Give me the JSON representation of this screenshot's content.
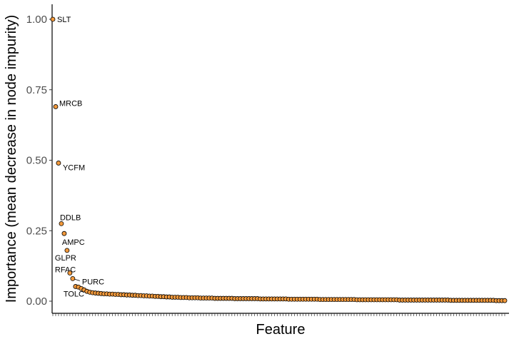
{
  "chart_data": {
    "type": "scatter",
    "title": "",
    "xlabel": "Feature",
    "ylabel": "Importance (mean decrease in node impurity)",
    "ylim": [
      -0.05,
      1.05
    ],
    "yticks": [
      0,
      0.25,
      0.5,
      0.75,
      1.0
    ],
    "ytick_labels": [
      "0.00",
      "0.25",
      "0.50",
      "0.75",
      "1.00"
    ],
    "grid": false,
    "point_color": "#F39A3C",
    "point_stroke": "#000000",
    "series": [
      {
        "values": [
          1.0,
          0.69,
          0.49,
          0.275,
          0.24,
          0.18,
          0.1,
          0.08,
          0.052,
          0.05,
          0.045,
          0.04,
          0.035,
          0.032,
          0.03,
          0.029,
          0.028,
          0.027,
          0.026,
          0.026,
          0.025,
          0.025,
          0.024,
          0.024,
          0.023,
          0.023,
          0.022,
          0.022,
          0.021,
          0.021,
          0.02,
          0.02,
          0.019,
          0.019,
          0.018,
          0.018,
          0.017,
          0.017,
          0.016,
          0.016,
          0.015,
          0.015,
          0.014,
          0.014,
          0.014,
          0.013,
          0.013,
          0.013,
          0.012,
          0.012,
          0.012,
          0.012,
          0.011,
          0.011,
          0.011,
          0.011,
          0.011,
          0.01,
          0.01,
          0.01,
          0.01,
          0.01,
          0.01,
          0.01,
          0.009,
          0.009,
          0.009,
          0.009,
          0.009,
          0.009,
          0.009,
          0.009,
          0.009,
          0.008,
          0.008,
          0.008,
          0.008,
          0.008,
          0.008,
          0.008,
          0.008,
          0.008,
          0.008,
          0.007,
          0.007,
          0.007,
          0.007,
          0.007,
          0.007,
          0.007,
          0.007,
          0.007,
          0.007,
          0.007,
          0.006,
          0.006,
          0.006,
          0.006,
          0.006,
          0.006,
          0.006,
          0.006,
          0.006,
          0.006,
          0.006,
          0.006,
          0.006,
          0.005,
          0.005,
          0.005,
          0.005,
          0.005,
          0.005,
          0.005,
          0.005,
          0.005,
          0.005,
          0.005,
          0.005,
          0.005,
          0.005,
          0.005,
          0.004,
          0.004,
          0.004,
          0.004,
          0.004,
          0.004,
          0.004,
          0.004,
          0.004,
          0.004,
          0.004,
          0.004,
          0.004,
          0.004,
          0.004,
          0.004,
          0.004,
          0.004,
          0.003,
          0.003,
          0.003,
          0.003,
          0.003,
          0.003,
          0.003,
          0.003,
          0.003,
          0.003,
          0.003,
          0.003,
          0.003,
          0.003,
          0.003,
          0.003,
          0.002,
          0.002,
          0.002,
          0.002
        ]
      }
    ],
    "annotations": [
      {
        "index": 0,
        "text": "SLT",
        "side": "right"
      },
      {
        "index": 1,
        "text": "MRCB",
        "side": "right-up"
      },
      {
        "index": 2,
        "text": "YCFM",
        "side": "right-down"
      },
      {
        "index": 3,
        "text": "DDLB",
        "side": "up"
      },
      {
        "index": 4,
        "text": "AMPC",
        "side": "down"
      },
      {
        "index": 5,
        "text": "GLPR",
        "side": "down-left"
      },
      {
        "index": 6,
        "text": "RFAC",
        "side": "up-left"
      },
      {
        "index": 7,
        "text": "PURC",
        "side": "right-leader"
      },
      {
        "index": 8,
        "text": "TOLC",
        "side": "down-left"
      }
    ]
  }
}
